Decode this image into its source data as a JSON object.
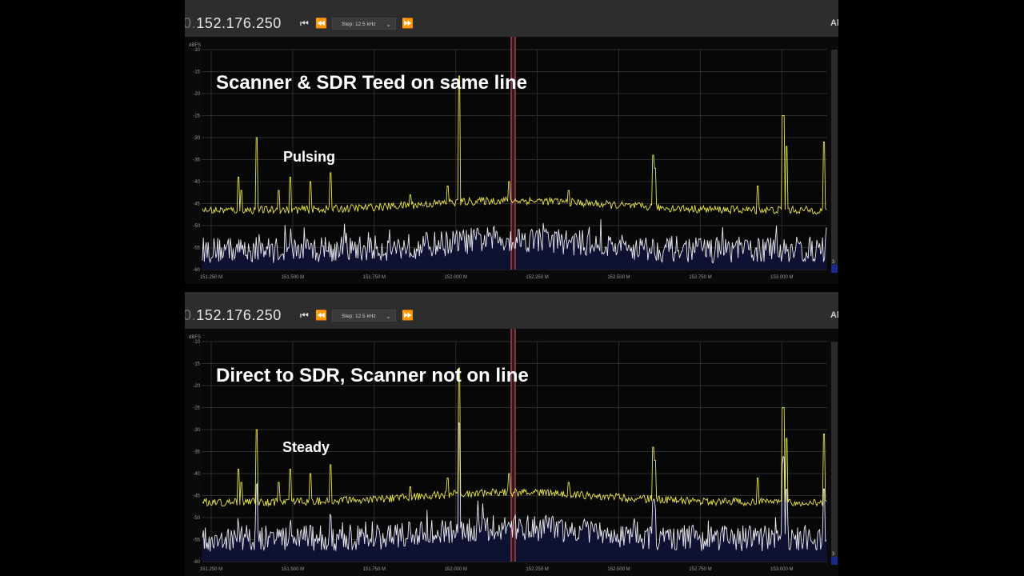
{
  "panels": [
    {
      "freq_prefix": "0.",
      "freq_main": "152.176.250",
      "step_label": "Step: 12.5 kHz",
      "corner_label": "Al",
      "annotation_title": "Scanner & SDR Teed on same line",
      "annotation_note": "Pulsing",
      "y_unit": "dBFS",
      "y_ticks": [
        "-10",
        "-15",
        "-20",
        "-25",
        "-30",
        "-35",
        "-40",
        "-45",
        "-50",
        "-55",
        "-60"
      ],
      "x_ticks": [
        "151.250 M",
        "151.500 M",
        "151.750 M",
        "152.000 M",
        "152.250 M",
        "152.500 M",
        "152.750 M",
        "153.000 M"
      ],
      "scale_marker": "3"
    },
    {
      "freq_prefix": "0.",
      "freq_main": "152.176.250",
      "step_label": "Step: 12.5 kHz",
      "corner_label": "Al",
      "annotation_title": "Direct to SDR, Scanner not on line",
      "annotation_note": "Steady",
      "y_unit": "dBFS",
      "y_ticks": [
        "-10",
        "-15",
        "-20",
        "-25",
        "-30",
        "-35",
        "-40",
        "-45",
        "-50",
        "-55",
        "-60"
      ],
      "x_ticks": [
        "151.250 M",
        "151.500 M",
        "151.750 M",
        "152.000 M",
        "152.250 M",
        "152.500 M",
        "152.750 M",
        "153.000 M"
      ],
      "scale_marker": "3"
    }
  ],
  "colors": {
    "background": "#000000",
    "toolbar": "#2d2d2d",
    "trace_peak": "#e8e34a",
    "trace_live": "#e8e8f0",
    "fill": "#101236",
    "center_marker": "#d06070",
    "grid": "#2c2c2c"
  },
  "icons": [
    "skip-start-icon",
    "rewind-icon",
    "chevron-down-icon",
    "fast-forward-icon"
  ]
}
